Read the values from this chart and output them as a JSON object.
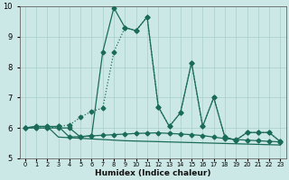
{
  "xlabel": "Humidex (Indice chaleur)",
  "x": [
    0,
    1,
    2,
    3,
    4,
    5,
    6,
    7,
    8,
    9,
    10,
    11,
    12,
    13,
    14,
    15,
    16,
    17,
    18,
    19,
    20,
    21,
    22,
    23
  ],
  "line_spiky": [
    6.0,
    6.0,
    6.0,
    6.0,
    6.0,
    5.7,
    5.75,
    8.5,
    9.95,
    9.3,
    9.2,
    9.65,
    6.7,
    6.05,
    6.5,
    8.15,
    6.05,
    7.0,
    5.7,
    5.6,
    5.85,
    5.85,
    5.85,
    5.55
  ],
  "line_ramp": [
    6.0,
    6.0,
    6.0,
    6.05,
    6.1,
    6.35,
    6.55,
    6.65,
    8.5,
    9.3,
    9.2,
    9.65,
    6.7,
    6.05,
    6.5,
    8.15,
    6.05,
    7.0,
    5.7,
    5.6,
    5.85,
    5.85,
    5.85,
    5.55
  ],
  "line_flat1": [
    6.0,
    6.05,
    6.05,
    6.05,
    5.7,
    5.72,
    5.74,
    5.76,
    5.78,
    5.8,
    5.82,
    5.83,
    5.84,
    5.82,
    5.8,
    5.78,
    5.75,
    5.7,
    5.65,
    5.62,
    5.6,
    5.58,
    5.56,
    5.54
  ],
  "line_flat2": [
    6.0,
    6.05,
    6.05,
    5.7,
    5.68,
    5.66,
    5.64,
    5.62,
    5.6,
    5.58,
    5.57,
    5.56,
    5.55,
    5.54,
    5.53,
    5.52,
    5.51,
    5.5,
    5.49,
    5.48,
    5.47,
    5.46,
    5.45,
    5.44
  ],
  "ylim": [
    5,
    10
  ],
  "yticks": [
    5,
    6,
    7,
    8,
    9,
    10
  ],
  "bg_color": "#cce8e6",
  "grid_color": "#aacfcc",
  "line_color": "#1b6b5a",
  "markersize": 2.5,
  "linewidth": 0.9
}
